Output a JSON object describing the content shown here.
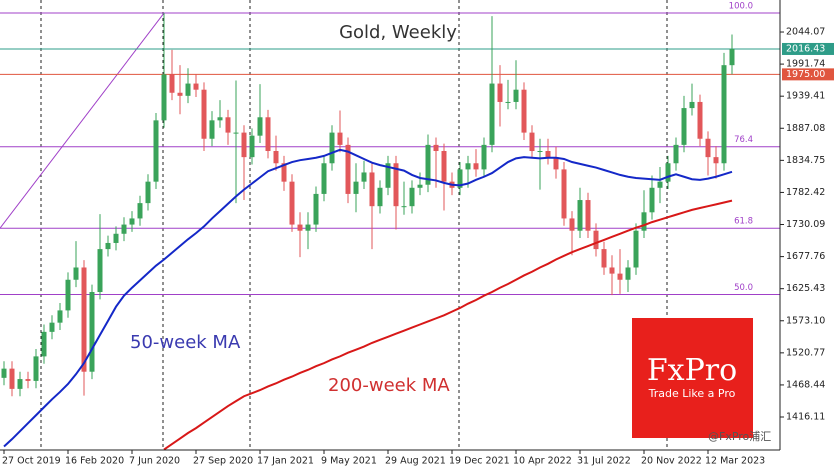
{
  "chart_data": {
    "type": "candlestick",
    "title": "Gold, Weekly",
    "categories": [
      "27 Oct 2019",
      null,
      null,
      null,
      null,
      null,
      null,
      null,
      "16 Feb 2020",
      null,
      null,
      null,
      null,
      null,
      null,
      null,
      "7 Jun 2020",
      null,
      null,
      null,
      null,
      null,
      null,
      null,
      "27 Sep 2020",
      null,
      null,
      null,
      null,
      null,
      null,
      null,
      "17 Jan 2021",
      null,
      null,
      null,
      null,
      null,
      null,
      null,
      "9 May 2021",
      null,
      null,
      null,
      null,
      null,
      null,
      null,
      "29 Aug 2021",
      null,
      null,
      null,
      null,
      null,
      null,
      null,
      "19 Dec 2021",
      null,
      null,
      null,
      null,
      null,
      null,
      null,
      "10 Apr 2022",
      null,
      null,
      null,
      null,
      null,
      null,
      null,
      "31 Jul 2022",
      null,
      null,
      null,
      null,
      null,
      null,
      null,
      "20 Nov 2022",
      null,
      null,
      null,
      null,
      null,
      null,
      null,
      "12 Mar 2023",
      null,
      null,
      null
    ],
    "candles": {
      "open": [
        1480,
        1495,
        1462,
        1478,
        1475,
        1515,
        1555,
        1570,
        1590,
        1640,
        1660,
        1490,
        1620,
        1690,
        1700,
        1715,
        1730,
        1740,
        1765,
        1800,
        1900,
        1975,
        1945,
        1940,
        1960,
        1950,
        1870,
        1900,
        1905,
        1880,
        1880,
        1840,
        1875,
        1905,
        1850,
        1830,
        1800,
        1730,
        1720,
        1730,
        1780,
        1830,
        1880,
        1860,
        1780,
        1800,
        1815,
        1760,
        1790,
        1830,
        1760,
        1760,
        1790,
        1795,
        1860,
        1850,
        1800,
        1790,
        1820,
        1830,
        1820,
        1860,
        1960,
        1930,
        1930,
        1950,
        1880,
        1850,
        1850,
        1840,
        1820,
        1740,
        1720,
        1770,
        1720,
        1690,
        1660,
        1650,
        1640,
        1660,
        1720,
        1750,
        1790,
        1800,
        1830,
        1860,
        1920,
        1930,
        1870,
        1840,
        1830,
        1990
      ],
      "high": [
        1507,
        1507,
        1490,
        1490,
        1527,
        1567,
        1582,
        1602,
        1652,
        1703,
        1672,
        1632,
        1747,
        1712,
        1727,
        1742,
        1752,
        1777,
        1812,
        1912,
        2075,
        2015,
        1990,
        1985,
        1975,
        1962,
        1915,
        1933,
        1917,
        1965,
        1892,
        1887,
        1959,
        1917,
        1875,
        1842,
        1812,
        1750,
        1750,
        1792,
        1842,
        1892,
        1916,
        1872,
        1830,
        1834,
        1832,
        1802,
        1842,
        1842,
        1800,
        1802,
        1815,
        1877,
        1872,
        1862,
        1815,
        1832,
        1842,
        1853,
        1872,
        2070,
        1990,
        1966,
        1998,
        1962,
        1892,
        1870,
        1870,
        1857,
        1832,
        1752,
        1790,
        1782,
        1732,
        1702,
        1680,
        1690,
        1672,
        1732,
        1786,
        1810,
        1824,
        1842,
        1872,
        1940,
        1960,
        1942,
        1882,
        1858,
        2010,
        2040
      ],
      "low": [
        1468,
        1450,
        1450,
        1463,
        1463,
        1503,
        1543,
        1558,
        1578,
        1628,
        1451,
        1478,
        1608,
        1678,
        1688,
        1703,
        1718,
        1728,
        1753,
        1788,
        1888,
        1933,
        1910,
        1928,
        1938,
        1850,
        1858,
        1888,
        1860,
        1765,
        1770,
        1828,
        1863,
        1838,
        1818,
        1785,
        1718,
        1677,
        1690,
        1718,
        1768,
        1818,
        1848,
        1765,
        1750,
        1788,
        1690,
        1748,
        1778,
        1722,
        1746,
        1748,
        1778,
        1783,
        1790,
        1753,
        1778,
        1778,
        1790,
        1808,
        1808,
        1848,
        1890,
        1918,
        1918,
        1868,
        1838,
        1787,
        1828,
        1805,
        1728,
        1680,
        1708,
        1708,
        1678,
        1648,
        1615,
        1617,
        1620,
        1648,
        1708,
        1738,
        1765,
        1788,
        1818,
        1848,
        1908,
        1858,
        1810,
        1805,
        1818,
        1975
      ],
      "close": [
        1495,
        1462,
        1478,
        1475,
        1515,
        1555,
        1570,
        1590,
        1640,
        1660,
        1490,
        1620,
        1690,
        1700,
        1715,
        1730,
        1740,
        1765,
        1800,
        1900,
        1975,
        1945,
        1940,
        1960,
        1950,
        1870,
        1900,
        1905,
        1880,
        1880,
        1840,
        1875,
        1905,
        1850,
        1830,
        1800,
        1730,
        1720,
        1730,
        1780,
        1830,
        1880,
        1860,
        1780,
        1800,
        1815,
        1760,
        1790,
        1830,
        1760,
        1760,
        1790,
        1795,
        1860,
        1850,
        1800,
        1790,
        1820,
        1830,
        1820,
        1860,
        1960,
        1930,
        1930,
        1950,
        1880,
        1850,
        1850,
        1840,
        1820,
        1740,
        1720,
        1770,
        1720,
        1690,
        1660,
        1650,
        1640,
        1660,
        1720,
        1750,
        1790,
        1800,
        1830,
        1860,
        1920,
        1930,
        1870,
        1840,
        1830,
        1990,
        2016.43
      ]
    },
    "up_color": "#3aa35a",
    "down_color": "#e2575a",
    "series": [
      {
        "name": "50-week MA",
        "color": "#1428c8",
        "values": [
          1368,
          1380,
          1393,
          1406,
          1419,
          1432,
          1445,
          1457,
          1470,
          1486,
          1504,
          1527,
          1550,
          1573,
          1596,
          1614,
          1627,
          1639,
          1651,
          1663,
          1673,
          1684,
          1695,
          1706,
          1716,
          1727,
          1740,
          1752,
          1764,
          1776,
          1787,
          1797,
          1807,
          1817,
          1822,
          1827,
          1832,
          1835,
          1837,
          1839,
          1842,
          1847,
          1852,
          1849,
          1843,
          1837,
          1831,
          1827,
          1824,
          1821,
          1818,
          1811,
          1806,
          1804,
          1802,
          1798,
          1795,
          1794,
          1797,
          1803,
          1808,
          1814,
          1823,
          1832,
          1838,
          1840,
          1839,
          1838,
          1839,
          1839,
          1837,
          1832,
          1829,
          1826,
          1823,
          1819,
          1815,
          1811,
          1808,
          1806,
          1805,
          1804,
          1803,
          1808,
          1812,
          1808,
          1804,
          1803,
          1805,
          1808,
          1812,
          1816
        ]
      },
      {
        "name": "200-week MA",
        "color": "#d81818",
        "values": [
          null,
          null,
          null,
          null,
          null,
          null,
          null,
          null,
          null,
          null,
          null,
          null,
          null,
          null,
          null,
          null,
          null,
          null,
          null,
          null,
          1363,
          1372,
          1381,
          1390,
          1398,
          1407,
          1416,
          1425,
          1434,
          1442,
          1450,
          1455,
          1460,
          1466,
          1471,
          1477,
          1482,
          1488,
          1493,
          1499,
          1504,
          1510,
          1515,
          1521,
          1526,
          1531,
          1537,
          1542,
          1547,
          1552,
          1557,
          1562,
          1567,
          1572,
          1577,
          1582,
          1588,
          1594,
          1601,
          1607,
          1614,
          1620,
          1627,
          1633,
          1640,
          1647,
          1653,
          1660,
          1666,
          1673,
          1679,
          1685,
          1690,
          1695,
          1700,
          1705,
          1710,
          1715,
          1720,
          1725,
          1729,
          1734,
          1738,
          1742,
          1746,
          1750,
          1754,
          1757,
          1760,
          1763,
          1766,
          1769
        ]
      }
    ],
    "ylim": [
      1362.3,
      2096.3
    ],
    "yticks": [
      2044.07,
      1991.74,
      1939.41,
      1887.08,
      1834.75,
      1782.42,
      1730.09,
      1677.76,
      1625.43,
      {
        "value": 1573.1,
        "label": "1573.10"
      },
      1520.77,
      1468.44,
      1416.11
    ],
    "fib_levels": [
      {
        "value": 2075,
        "label": "100.0"
      },
      {
        "value": 1857,
        "label": "76.4"
      },
      {
        "value": 1724,
        "label": "61.8"
      },
      {
        "value": 1616,
        "label": "50.0"
      }
    ],
    "fib_color": "#a040c8",
    "trendline": {
      "x": [
        0,
        20
      ],
      "y": [
        1724,
        2075
      ]
    },
    "price_lines": [
      2016.43,
      {
        "value": 1975,
        "label": "1975.00"
      }
    ],
    "price_line_colors": [
      "#2e9c88",
      "#e0553e"
    ],
    "logo": {
      "brand": "FxPro",
      "tagline": "Trade Like a Pro"
    },
    "watermark": "@FxPro浦汇"
  }
}
